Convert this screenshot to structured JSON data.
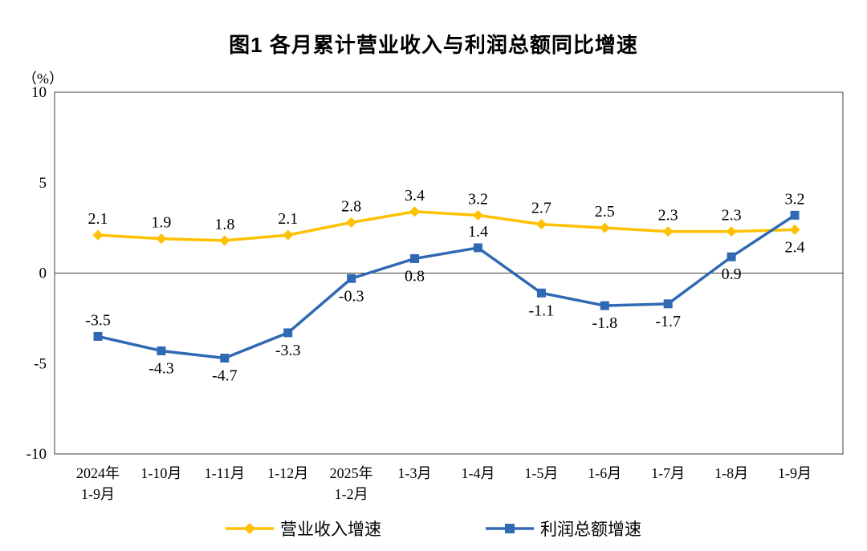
{
  "chart": {
    "title": "图1  各月累计营业收入与利润总额同比增速",
    "y_unit": "（%）"
  },
  "chart_data": {
    "type": "line",
    "title": "图1  各月累计营业收入与利润总额同比增速",
    "ylabel": "（%）",
    "ylim": [
      -10,
      10
    ],
    "yticks": [
      10,
      5,
      0,
      -5,
      -10
    ],
    "grid": false,
    "legend_position": "bottom",
    "categories": [
      "2024年\n1-9月",
      "1-10月",
      "1-11月",
      "1-12月",
      "2025年\n1-2月",
      "1-3月",
      "1-4月",
      "1-5月",
      "1-6月",
      "1-7月",
      "1-8月",
      "1-9月"
    ],
    "series": [
      {
        "name": "营业收入增速",
        "color": "#FFC000",
        "marker": "diamond",
        "values": [
          2.1,
          1.9,
          1.8,
          2.1,
          2.8,
          3.4,
          3.2,
          2.7,
          2.5,
          2.3,
          2.3,
          2.4
        ],
        "label_positions": [
          "above",
          "above",
          "above",
          "above",
          "above",
          "above",
          "above",
          "above",
          "above",
          "above",
          "above",
          "below"
        ]
      },
      {
        "name": "利润总额增速",
        "color": "#3069B3",
        "marker": "square",
        "values": [
          -3.5,
          -4.3,
          -4.7,
          -3.3,
          -0.3,
          0.8,
          1.4,
          -1.1,
          -1.8,
          -1.7,
          0.9,
          3.2
        ],
        "label_positions": [
          "above",
          "below",
          "below",
          "below",
          "below",
          "below",
          "above",
          "below",
          "below",
          "below",
          "below",
          "above"
        ]
      }
    ]
  }
}
